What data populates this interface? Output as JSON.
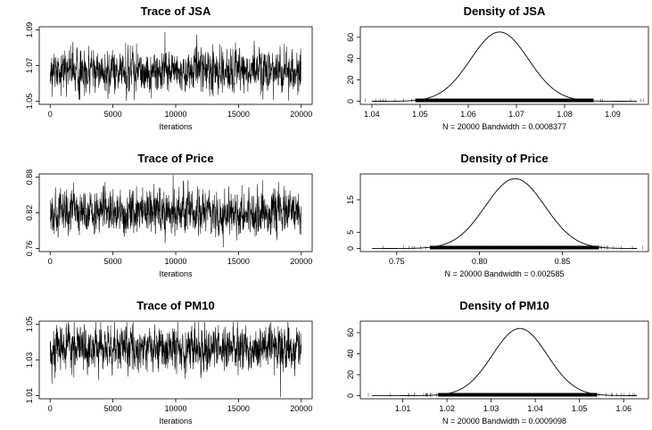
{
  "chart_data": [
    {
      "type": "line",
      "title": "Trace of JSA",
      "xlabel": "Iterations",
      "ylabel": "",
      "xlim": [
        0,
        20000
      ],
      "ylim": [
        1.05,
        1.09
      ],
      "xticks": [
        "0",
        "5000",
        "10000",
        "15000",
        "20000"
      ],
      "yticks": [
        "1.05",
        "1.07",
        "1.09"
      ],
      "series": [
        {
          "mean": 1.067,
          "sd": 0.006,
          "n_iterations": 20000
        }
      ]
    },
    {
      "type": "line",
      "title": "Density of JSA",
      "xlabel": "N = 20000   Bandwidth = 0.0008377",
      "ylabel": "",
      "xlim": [
        1.04,
        1.095
      ],
      "ylim": [
        0,
        67
      ],
      "xticks": [
        "1.04",
        "1.05",
        "1.06",
        "1.07",
        "1.08",
        "1.09"
      ],
      "yticks": [
        "0",
        "20",
        "40",
        "60"
      ],
      "series": [
        {
          "mean": 1.0665,
          "sd": 0.006,
          "peak": 65,
          "rug_min": 1.049,
          "rug_max": 1.086
        }
      ]
    },
    {
      "type": "line",
      "title": "Trace of Price",
      "xlabel": "Iterations",
      "ylabel": "",
      "xlim": [
        0,
        20000
      ],
      "ylim": [
        0.76,
        0.88
      ],
      "xticks": [
        "0",
        "5000",
        "10000",
        "15000",
        "20000"
      ],
      "yticks": [
        "0.76",
        "0.82",
        "0.88"
      ],
      "series": [
        {
          "mean": 0.821,
          "sd": 0.018,
          "n_iterations": 20000
        }
      ]
    },
    {
      "type": "line",
      "title": "Density of Price",
      "xlabel": "N = 20000   Bandwidth = 0.002585",
      "ylabel": "",
      "xlim": [
        0.735,
        0.895
      ],
      "ylim": [
        0,
        22
      ],
      "xticks": [
        "0.75",
        "0.80",
        "0.85"
      ],
      "yticks": [
        "0",
        "5",
        "15"
      ],
      "series": [
        {
          "mean": 0.8215,
          "sd": 0.018,
          "peak": 21.5,
          "rug_min": 0.77,
          "rug_max": 0.872
        }
      ]
    },
    {
      "type": "line",
      "title": "Trace of PM10",
      "xlabel": "Iterations",
      "ylabel": "",
      "xlim": [
        0,
        20000
      ],
      "ylim": [
        1.01,
        1.05
      ],
      "xticks": [
        "0",
        "5000",
        "10000",
        "15000",
        "20000"
      ],
      "yticks": [
        "1.01",
        "1.03",
        "1.05"
      ],
      "series": [
        {
          "mean": 1.0365,
          "sd": 0.006,
          "n_iterations": 20000
        }
      ]
    },
    {
      "type": "line",
      "title": "Density of PM10",
      "xlabel": "N = 20000   Bandwidth = 0.0009098",
      "ylabel": "",
      "xlim": [
        1.003,
        1.063
      ],
      "ylim": [
        0,
        68
      ],
      "xticks": [
        "1.01",
        "1.02",
        "1.03",
        "1.04",
        "1.05",
        "1.06"
      ],
      "yticks": [
        "0",
        "20",
        "40",
        "60"
      ],
      "series": [
        {
          "mean": 1.0365,
          "sd": 0.0062,
          "peak": 64,
          "rug_min": 1.018,
          "rug_max": 1.054
        }
      ]
    }
  ]
}
